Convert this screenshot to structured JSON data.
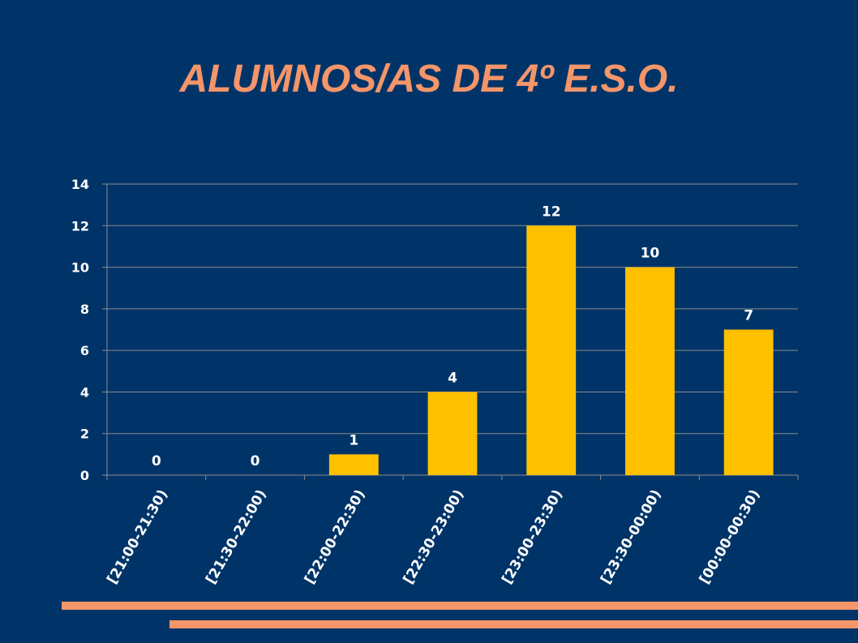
{
  "slide": {
    "title": "ALUMNOS/AS DE 4º E.S.O."
  },
  "colors": {
    "background": "#003468",
    "title": "#F4956A",
    "bar": "#FFC000",
    "gridline": "#8C8C8C",
    "text": "#FFFFFF",
    "accent_lines": "#F4956A"
  },
  "chart_data": {
    "type": "bar",
    "title": "",
    "xlabel": "",
    "ylabel": "",
    "categories": [
      "[21:00-21:30)",
      "[21:30-22:00)",
      "[22:00-22:30)",
      "[22:30-23:00)",
      "[23:00-23:30)",
      "[23:30-00:00)",
      "[00:00-00:30)"
    ],
    "values": [
      0,
      0,
      1,
      4,
      12,
      10,
      7
    ],
    "ylim": [
      0,
      14
    ],
    "yticks": [
      0,
      2,
      4,
      6,
      8,
      10,
      12,
      14
    ],
    "grid": true,
    "legend": "none",
    "data_labels": true
  }
}
